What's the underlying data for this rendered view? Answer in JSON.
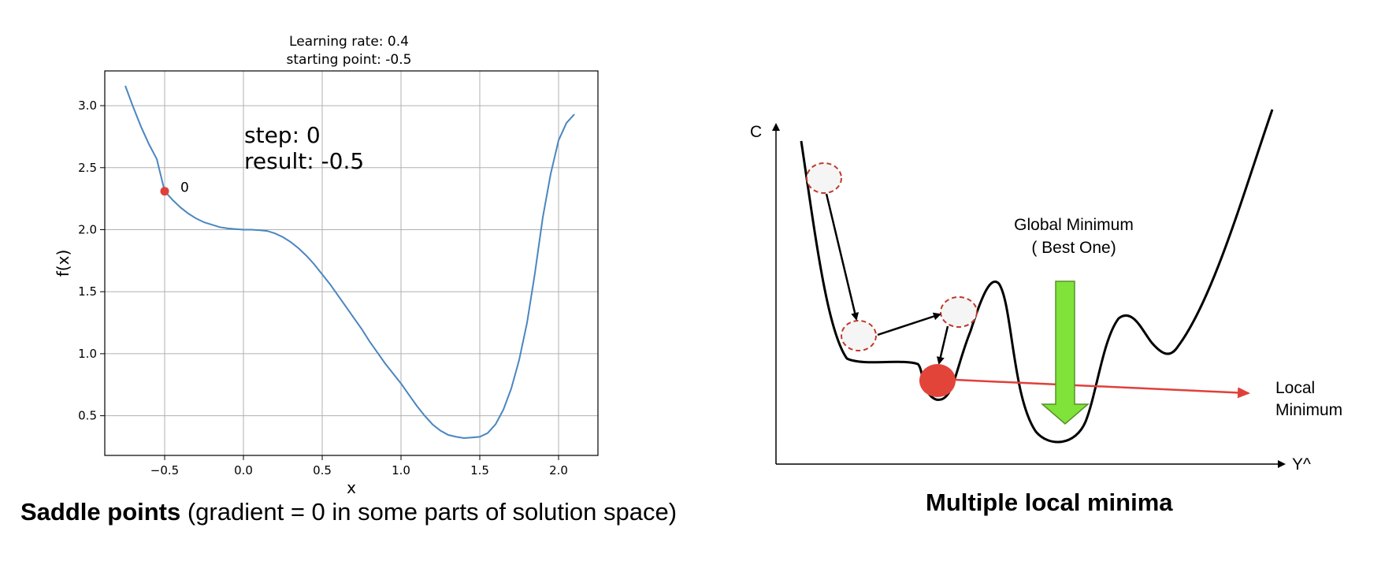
{
  "chart_data": [
    {
      "type": "line",
      "title_lines": [
        "Learning rate: 0.4",
        "starting point: -0.5"
      ],
      "xlabel": "x",
      "ylabel": "f(x)",
      "xlim": [
        -0.88,
        2.25
      ],
      "ylim": [
        0.18,
        3.28
      ],
      "grid": true,
      "x_ticks": [
        -0.5,
        0.0,
        0.5,
        1.0,
        1.5,
        2.0
      ],
      "x_tick_labels": [
        "−0.5",
        "0.0",
        "0.5",
        "1.0",
        "1.5",
        "2.0"
      ],
      "y_ticks": [
        0.5,
        1.0,
        1.5,
        2.0,
        2.5,
        3.0
      ],
      "y_tick_labels": [
        "0.5",
        "1.0",
        "1.5",
        "2.0",
        "2.5",
        "3.0"
      ],
      "series": [
        {
          "color": "#4a86c0",
          "x": [
            -0.75,
            -0.7,
            -0.65,
            -0.6,
            -0.55,
            -0.5,
            -0.45,
            -0.4,
            -0.35,
            -0.3,
            -0.25,
            -0.2,
            -0.15,
            -0.1,
            -0.05,
            0.0,
            0.05,
            0.1,
            0.15,
            0.2,
            0.25,
            0.3,
            0.35,
            0.4,
            0.45,
            0.5,
            0.55,
            0.6,
            0.65,
            0.7,
            0.75,
            0.8,
            0.85,
            0.9,
            0.95,
            1.0,
            1.05,
            1.1,
            1.15,
            1.2,
            1.25,
            1.3,
            1.35,
            1.4,
            1.45,
            1.5,
            1.55,
            1.6,
            1.65,
            1.7,
            1.75,
            1.8,
            1.85,
            1.9,
            1.95,
            2.0,
            2.05,
            2.1
          ],
          "y": [
            3.16,
            2.99,
            2.83,
            2.69,
            2.57,
            2.31,
            2.24,
            2.18,
            2.13,
            2.09,
            2.06,
            2.04,
            2.02,
            2.01,
            2.005,
            2.0,
            2.0,
            1.996,
            1.99,
            1.97,
            1.94,
            1.9,
            1.85,
            1.79,
            1.72,
            1.64,
            1.56,
            1.47,
            1.38,
            1.29,
            1.2,
            1.1,
            1.01,
            0.92,
            0.84,
            0.76,
            0.67,
            0.58,
            0.5,
            0.43,
            0.38,
            0.345,
            0.33,
            0.32,
            0.325,
            0.33,
            0.36,
            0.43,
            0.55,
            0.72,
            0.95,
            1.25,
            1.65,
            2.1,
            2.45,
            2.72,
            2.86,
            2.93
          ]
        }
      ],
      "point": {
        "x": -0.5,
        "y": 2.31,
        "label": "0",
        "color": "#e0403a"
      },
      "annotation_lines": [
        "step: 0",
        "result: -0.5"
      ]
    },
    {
      "type": "line",
      "xlabel": "Y^",
      "ylabel": "C",
      "labels": {
        "global_line1": "Global Minimum",
        "global_line2": "( Best One)",
        "local_line1": "Local",
        "local_line2": "Minimum"
      },
      "colors": {
        "arrow_red": "#e0403a",
        "ball_red": "#e3443a",
        "arrow_green": "#7fe33a",
        "ghost_ball_border": "#c0392b"
      }
    }
  ],
  "captions": {
    "left_bold": "Saddle points",
    "left_rest": " (gradient = 0 in some parts of solution space)",
    "right": "Multiple local minima"
  }
}
